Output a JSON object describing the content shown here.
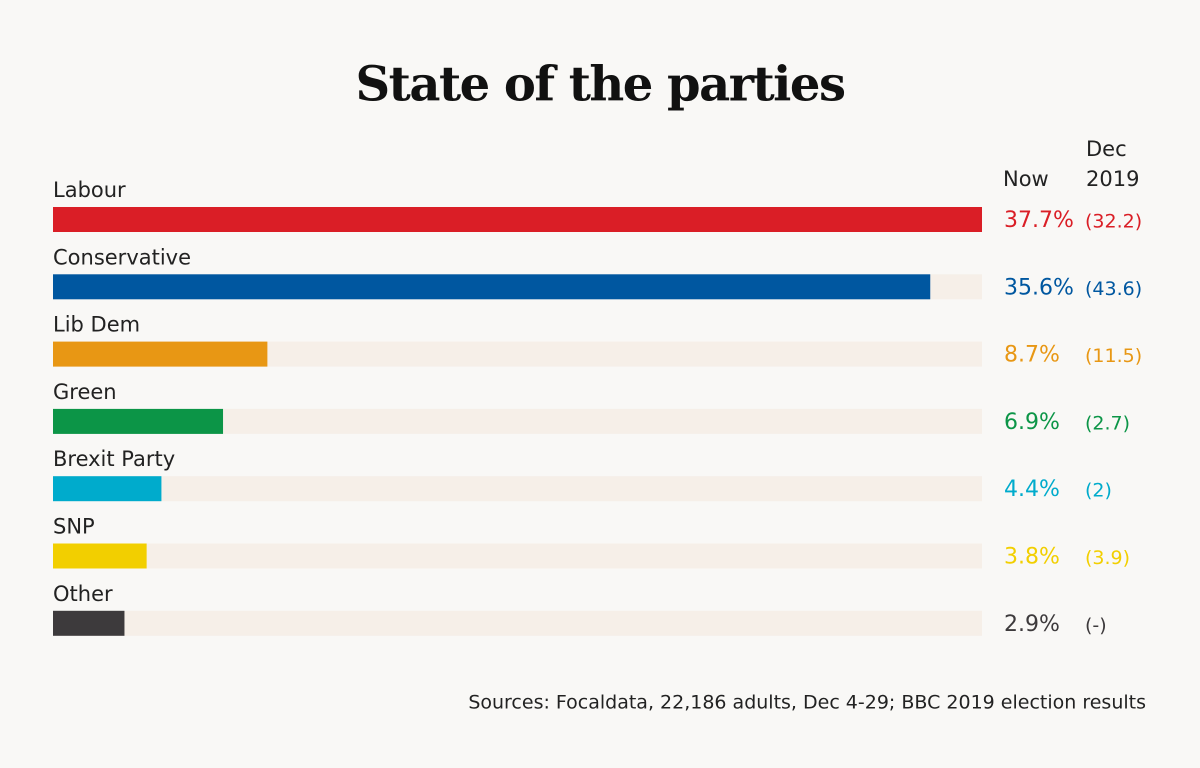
{
  "chart_data": {
    "type": "bar",
    "title": "State of the parties",
    "categories": [
      "Labour",
      "Conservative",
      "Lib Dem",
      "Green",
      "Brexit Party",
      "SNP",
      "Other"
    ],
    "values": [
      37.7,
      35.6,
      8.7,
      6.9,
      4.4,
      3.8,
      2.9
    ],
    "value_labels": [
      "37.7%",
      "35.6%",
      "8.7%",
      "6.9%",
      "4.4%",
      "3.8%",
      "2.9%"
    ],
    "colors": [
      "#da1e26",
      "#0057a0",
      "#e89714",
      "#0c9547",
      "#00abcc",
      "#f2cf00",
      "#3d3a3c"
    ],
    "xlim": [
      0,
      37.7
    ],
    "columns": [
      "Now",
      "Dec 2019"
    ],
    "dec_2019_values": [
      32.2,
      43.6,
      11.5,
      2.7,
      2,
      3.9,
      null
    ],
    "dec_2019_labels": [
      "(32.2)",
      "(43.6)",
      "(11.5)",
      "(2.7)",
      "(2)",
      "(3.9)",
      "(-)"
    ],
    "source": "Sources: Focaldata, 22,186 adults, Dec 4-29; BBC 2019 election results"
  }
}
